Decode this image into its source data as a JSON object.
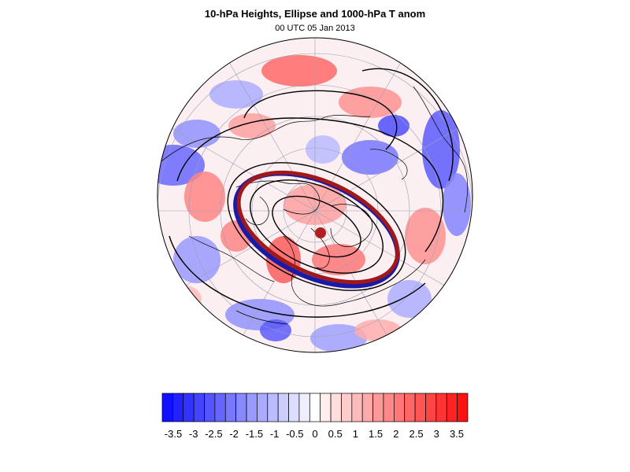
{
  "map": {
    "title": "10-hPa Heights, Ellipse and 1000-hPa T anom",
    "subtitle": "00 UTC 05 Jan 2013",
    "projection": "polar-stereographic-north",
    "field": "temperature-anomaly-shading",
    "overlays": [
      "height-contours",
      "coastlines",
      "lat-lon-grid",
      "fitted-ellipse"
    ],
    "colors": {
      "cold_end": "#0000ff",
      "neutral": "#ffffff",
      "warm_end": "#ff0000",
      "ellipse_inner": "#1a1aa6",
      "ellipse_outer": "#a01818",
      "center_marker": "#b02020",
      "contour": "#000000"
    }
  },
  "colorbar": {
    "levels": [
      -3.5,
      -3.25,
      -3,
      -2.75,
      -2.5,
      -2.25,
      -2,
      -1.75,
      -1.5,
      -1.25,
      -1,
      -0.75,
      -0.5,
      -0.25,
      0,
      0.25,
      0.5,
      0.75,
      1,
      1.25,
      1.5,
      1.75,
      2,
      2.25,
      2.5,
      2.75,
      3,
      3.25,
      3.5
    ],
    "tick_labels": [
      "-3.5",
      "-3",
      "-2.5",
      "-2",
      "-1.5",
      "-1",
      "-0.5",
      "0",
      "0.5",
      "1",
      "1.5",
      "2",
      "2.5",
      "3",
      "3.5"
    ]
  }
}
